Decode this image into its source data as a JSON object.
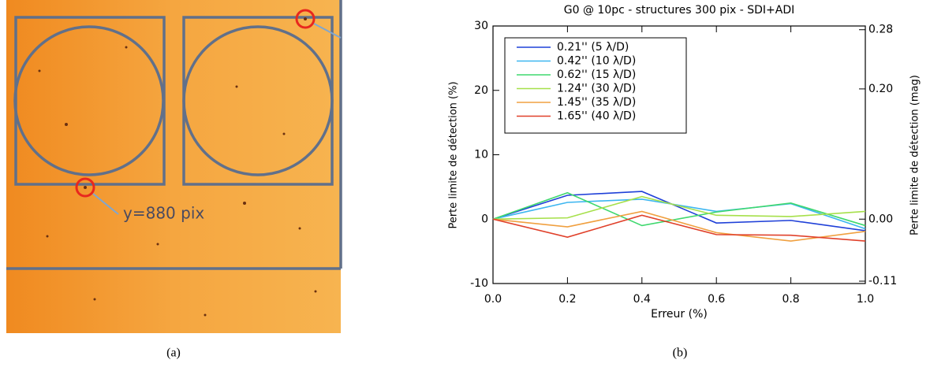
{
  "image_panel": {
    "annotation": "y=880 pix",
    "caption": "(a)"
  },
  "chart_data": {
    "type": "line",
    "title": "G0 @ 10pc - structures 300 pix - SDI+ADI",
    "xlabel": "Erreur (%)",
    "ylabel": "Perte limite de détection (%)",
    "y2label": "Perte limite de détection (mag)",
    "caption": "(b)",
    "x": [
      0,
      0.2,
      0.4,
      0.6,
      0.8,
      1.0
    ],
    "xlim": [
      0,
      1
    ],
    "xticks": [
      {
        "value": 0,
        "label": "0.0"
      },
      0.2,
      0.4,
      0.6,
      0.8,
      {
        "value": 1,
        "label": "1.0"
      }
    ],
    "ylim": [
      -10,
      30
    ],
    "yticks": [
      -10,
      0,
      10,
      20,
      30
    ],
    "y2lim": [
      -0.11,
      0.28
    ],
    "y2scale": "mag",
    "y2ticks": [
      -0.11,
      {
        "value": 0,
        "label": "0.00"
      },
      {
        "value": 0.2,
        "label": "0.20"
      },
      0.28
    ],
    "legend": "upper left",
    "series": [
      {
        "name": "0.21'' (5 λ/D)",
        "color": "#1f40d8",
        "values": [
          0,
          3.7,
          4.3,
          -0.6,
          -0.2,
          -1.8
        ]
      },
      {
        "name": "0.42'' (10 λ/D)",
        "color": "#3cb6f0",
        "values": [
          0,
          2.6,
          3.1,
          1.2,
          2.4,
          -1.5
        ]
      },
      {
        "name": "0.62'' (15 λ/D)",
        "color": "#3fd86e",
        "values": [
          0,
          4.1,
          -1.0,
          1.1,
          2.5,
          -1.0
        ]
      },
      {
        "name": "1.24'' (30 λ/D)",
        "color": "#a6e04a",
        "values": [
          0,
          0.2,
          3.5,
          0.6,
          0.4,
          1.2
        ]
      },
      {
        "name": "1.45'' (35 λ/D)",
        "color": "#f0a040",
        "values": [
          0,
          -1.2,
          1.2,
          -2.1,
          -3.4,
          -1.9
        ]
      },
      {
        "name": "1.65'' (40 λ/D)",
        "color": "#e0402a",
        "values": [
          0,
          -2.8,
          0.6,
          -2.4,
          -2.5,
          -3.4
        ]
      }
    ]
  }
}
